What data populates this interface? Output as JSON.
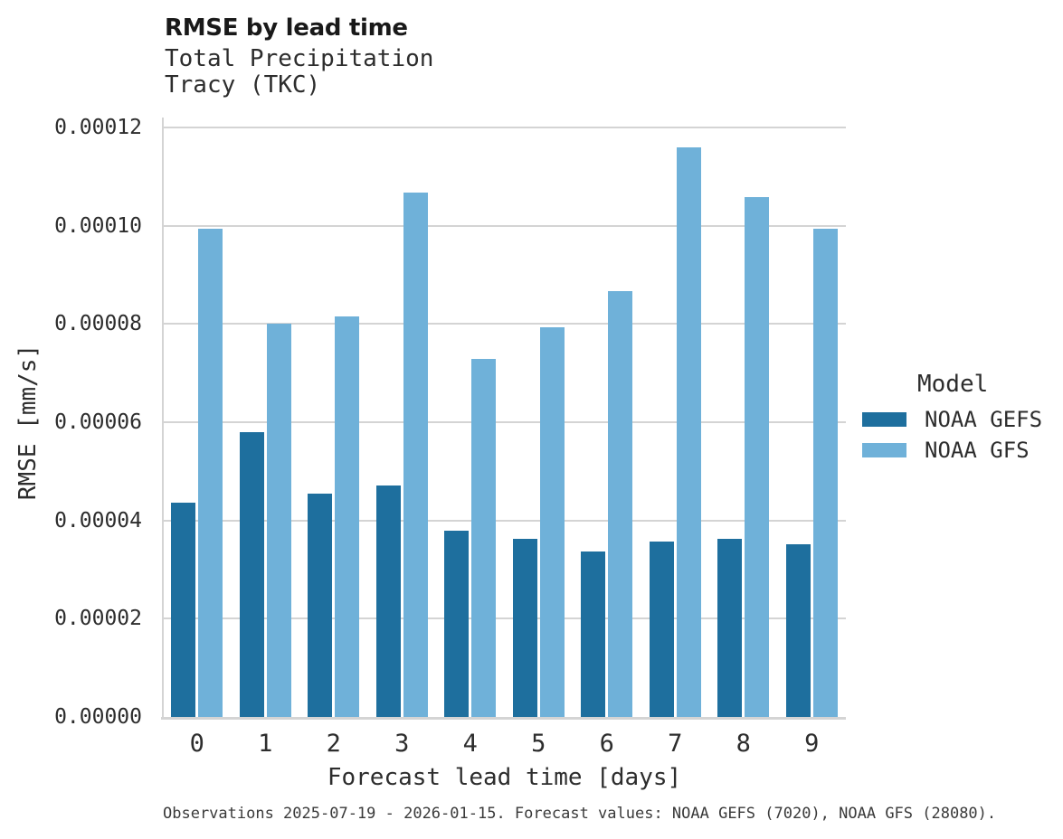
{
  "footnote": "Observations 2025-07-19 - 2026-01-15. Forecast values: NOAA GEFS (7020), NOAA GFS (28080).",
  "colors": {
    "gefs_blue": "#1e6f9e",
    "gfs_blue": "#6fb1d9",
    "grid_gray": "#d4d4d4",
    "axis_gray": "#d4d4d4",
    "text_dark": "#2d2d2d"
  },
  "chart_data": {
    "type": "bar",
    "title": "RMSE by lead time",
    "subtitle": "Total Precipitation",
    "station": "Tracy (TKC)",
    "xlabel": "Forecast lead time [days]",
    "ylabel": "RMSE [mm/s]",
    "categories": [
      "0",
      "1",
      "2",
      "3",
      "4",
      "5",
      "6",
      "7",
      "8",
      "9"
    ],
    "series": [
      {
        "name": "NOAA GEFS",
        "color": "#1e6f9e",
        "values": [
          4.36e-05,
          5.8e-05,
          4.54e-05,
          4.72e-05,
          3.79e-05,
          3.62e-05,
          3.37e-05,
          3.57e-05,
          3.63e-05,
          3.52e-05
        ]
      },
      {
        "name": "NOAA GFS",
        "color": "#6fb1d9",
        "values": [
          9.94e-05,
          8.01e-05,
          8.15e-05,
          0.0001068,
          7.29e-05,
          7.94e-05,
          8.66e-05,
          0.000116,
          0.0001058,
          9.94e-05
        ]
      }
    ],
    "ylim": [
      0,
      0.00012
    ],
    "yticks": [
      0,
      2e-05,
      4e-05,
      6e-05,
      8e-05,
      0.0001,
      0.00012
    ],
    "ytick_labels": [
      "0.00000",
      "0.00002",
      "0.00004",
      "0.00006",
      "0.00008",
      "0.00010",
      "0.00012"
    ],
    "grid": true,
    "legend": {
      "title": "Model",
      "position": "right"
    }
  }
}
